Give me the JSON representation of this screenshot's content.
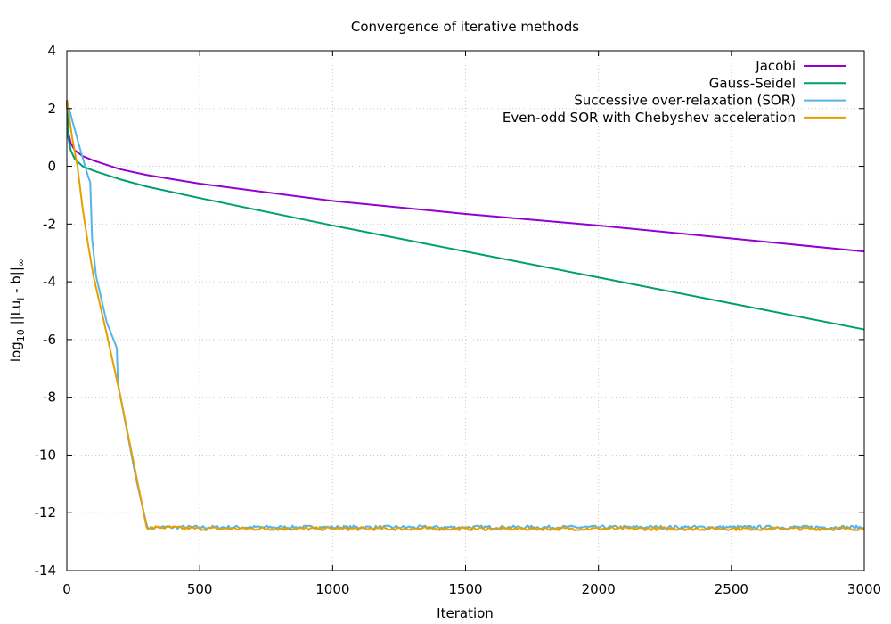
{
  "chart_data": {
    "type": "line",
    "title": "Convergence of iterative methods",
    "xlabel": "Iteration",
    "ylabel": {
      "prefix": "log",
      "sub": "10",
      "mid": " ||Lu",
      "sub2": "l",
      "suffix": " - b||",
      "sub3": "∞"
    },
    "xlim": [
      0,
      3000
    ],
    "ylim": [
      -14,
      4
    ],
    "xticks": [
      "0",
      "500",
      "1000",
      "1500",
      "2000",
      "2500",
      "3000"
    ],
    "yticks": [
      "4",
      "2",
      "0",
      "-2",
      "-4",
      "-6",
      "-8",
      "-10",
      "-12",
      "-14"
    ],
    "grid": true,
    "legend_position": "top-right",
    "series": [
      {
        "name": "Jacobi",
        "color": "#9400d3",
        "x": [
          0,
          5,
          15,
          30,
          60,
          100,
          200,
          300,
          500,
          1000,
          1500,
          2000,
          2500,
          3000
        ],
        "y": [
          2.3,
          1.2,
          0.8,
          0.55,
          0.35,
          0.2,
          -0.1,
          -0.3,
          -0.6,
          -1.2,
          -1.65,
          -2.05,
          -2.5,
          -2.95
        ]
      },
      {
        "name": "Gauss-Seidel",
        "color": "#009e73",
        "x": [
          0,
          5,
          15,
          30,
          60,
          100,
          200,
          300,
          500,
          1000,
          1500,
          2000,
          2500,
          3000
        ],
        "y": [
          2.3,
          1.0,
          0.55,
          0.25,
          0.0,
          -0.15,
          -0.45,
          -0.7,
          -1.1,
          -2.05,
          -2.95,
          -3.85,
          -4.75,
          -5.65
        ]
      },
      {
        "name": "Successive over-relaxation (SOR)",
        "color": "#56b4e9",
        "x": [
          0,
          20,
          50,
          80,
          88,
          95,
          110,
          150,
          180,
          188,
          192,
          200,
          260,
          300,
          310,
          340,
          500,
          1000,
          1500,
          2000,
          2500,
          3000
        ],
        "y": [
          2.3,
          1.6,
          0.6,
          -0.35,
          -0.55,
          -2.5,
          -3.8,
          -5.4,
          -6.1,
          -6.3,
          -7.5,
          -7.9,
          -10.8,
          -12.4,
          -12.55,
          -12.5,
          -12.5,
          -12.5,
          -12.5,
          -12.5,
          -12.5,
          -12.5
        ],
        "noise": 0.06
      },
      {
        "name": "Even-odd SOR with Chebyshev acceleration",
        "color": "#e69f00",
        "x": [
          0,
          20,
          40,
          60,
          80,
          100,
          150,
          200,
          250,
          300,
          310,
          340,
          500,
          1000,
          1500,
          2000,
          2500,
          3000
        ],
        "y": [
          2.3,
          1.0,
          0.0,
          -1.5,
          -2.7,
          -3.8,
          -5.8,
          -7.9,
          -10.2,
          -12.5,
          -12.55,
          -12.5,
          -12.55,
          -12.55,
          -12.55,
          -12.55,
          -12.55,
          -12.55
        ],
        "noise": 0.06
      }
    ]
  }
}
